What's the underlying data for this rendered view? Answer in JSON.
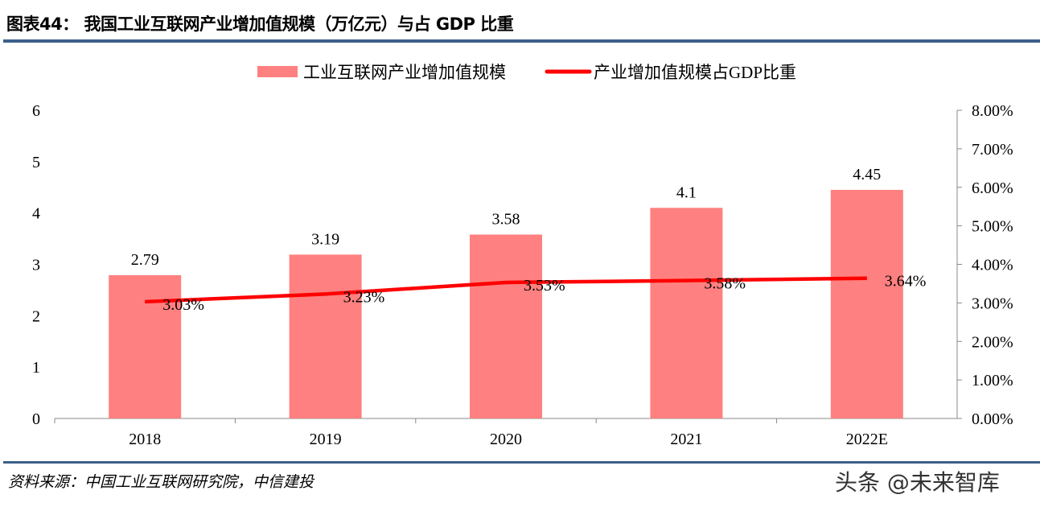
{
  "header": {
    "title": "图表44：  我国工业互联网产业增加值规模（万亿元）与占 GDP 比重"
  },
  "footer": {
    "source": "资料来源：中国工业互联网研究院，中信建投",
    "watermark": "头条 @未来智库"
  },
  "chart_data": {
    "type": "bar+line",
    "categories": [
      "2018",
      "2019",
      "2020",
      "2021",
      "2022E"
    ],
    "series": [
      {
        "name": "工业互联网产业增加值规模",
        "type": "bar",
        "axis": "left",
        "color": "#ff8080",
        "values": [
          2.79,
          3.19,
          3.58,
          4.1,
          4.45
        ],
        "labels": [
          "2.79",
          "3.19",
          "3.58",
          "4.1",
          "4.45"
        ]
      },
      {
        "name": "产业增加值规模占GDP比重",
        "type": "line",
        "axis": "right",
        "color": "#ff0000",
        "values": [
          3.03,
          3.23,
          3.53,
          3.58,
          3.64
        ],
        "labels": [
          "3.03%",
          "3.23%",
          "3.53%",
          "3.58%",
          "3.64%"
        ]
      }
    ],
    "left_axis": {
      "ylim": [
        0,
        6
      ],
      "ticks": [
        "0",
        "1",
        "2",
        "3",
        "4",
        "5",
        "6"
      ]
    },
    "right_axis": {
      "ylim": [
        0,
        8
      ],
      "ticks": [
        "0.00%",
        "1.00%",
        "2.00%",
        "3.00%",
        "4.00%",
        "5.00%",
        "6.00%",
        "7.00%",
        "8.00%"
      ]
    },
    "legend_position": "top",
    "grid": false
  }
}
